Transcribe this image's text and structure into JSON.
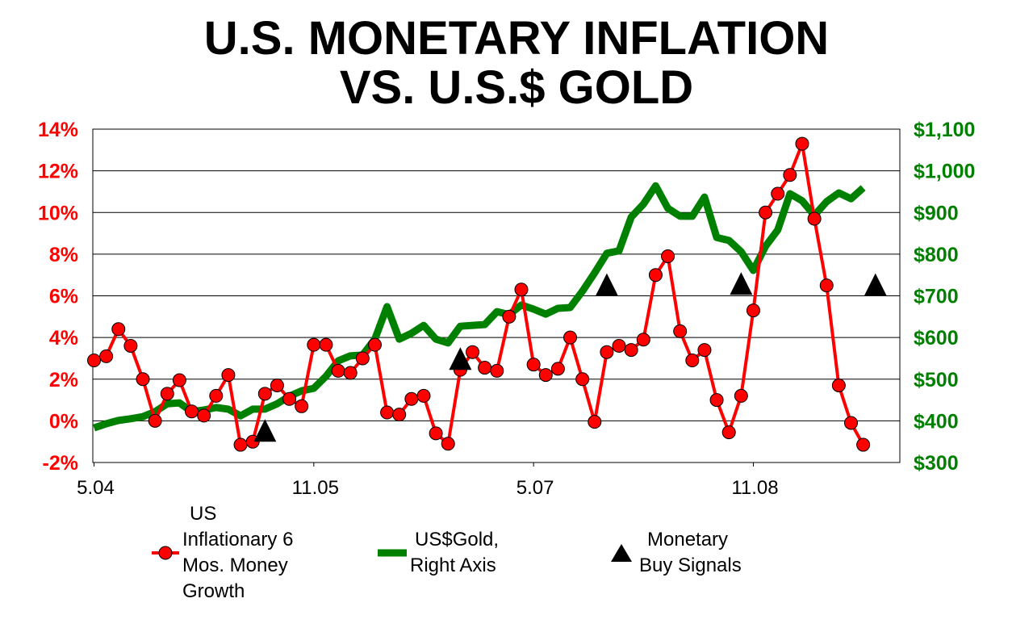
{
  "chart_data": {
    "type": "line",
    "title_line1": "U.S. MONETARY INFLATION",
    "title_line2": "VS. U.S.$ GOLD",
    "x_tick_labels": [
      {
        "index": 0,
        "label": "5.04"
      },
      {
        "index": 18,
        "label": "11.05"
      },
      {
        "index": 36,
        "label": "5.07"
      },
      {
        "index": 54,
        "label": "11.08"
      }
    ],
    "xlim": [
      -0.1,
      66
    ],
    "left_axis": {
      "ylim": [
        -2,
        14
      ],
      "ticks": [
        -2,
        0,
        2,
        4,
        6,
        8,
        10,
        12,
        14
      ],
      "tick_labels": [
        "-2%",
        "0%",
        "2%",
        "4%",
        "6%",
        "8%",
        "10%",
        "12%",
        "14%"
      ],
      "color": "#ff0000"
    },
    "right_axis": {
      "ylim": [
        300,
        1100
      ],
      "ticks": [
        300,
        400,
        500,
        600,
        700,
        800,
        900,
        1000,
        1100
      ],
      "tick_labels": [
        "$300",
        "$400",
        "$500",
        "$600",
        "$700",
        "$800",
        "$900",
        "$1,000",
        "$1,100"
      ],
      "color": "#008000"
    },
    "grid": true,
    "series": [
      {
        "name": "US Inflationary 6 Mos. Money Growth",
        "axis": "left",
        "color": "#ff0000",
        "values": [
          2.9,
          3.1,
          4.4,
          3.6,
          2.0,
          0.0,
          1.3,
          1.95,
          0.45,
          0.25,
          1.2,
          2.2,
          -1.15,
          -1.0,
          1.3,
          1.7,
          1.05,
          0.7,
          3.65,
          3.65,
          2.4,
          2.3,
          3.0,
          3.65,
          0.4,
          0.3,
          1.05,
          1.2,
          -0.6,
          -1.1,
          2.45,
          3.3,
          2.55,
          2.4,
          5.0,
          6.3,
          2.7,
          2.2,
          2.5,
          4.0,
          2.0,
          -0.05,
          3.3,
          3.6,
          3.4,
          3.9,
          7.0,
          7.9,
          4.3,
          2.9,
          3.4,
          1.0,
          -0.55,
          1.2,
          5.3,
          10.0,
          10.9,
          11.8,
          13.3,
          9.7,
          6.5,
          1.7,
          -0.1,
          -1.15
        ]
      },
      {
        "name": "US$Gold, Right Axis",
        "axis": "right",
        "color": "#008000",
        "values": [
          383,
          393,
          401,
          405,
          410,
          422,
          441,
          443,
          422,
          426,
          432,
          428,
          412,
          428,
          428,
          441,
          459,
          472,
          478,
          507,
          544,
          556,
          558,
          596,
          674,
          596,
          610,
          629,
          596,
          587,
          627,
          629,
          631,
          662,
          655,
          678,
          668,
          656,
          670,
          672,
          711,
          755,
          802,
          808,
          889,
          920,
          964,
          910,
          891,
          891,
          937,
          840,
          833,
          806,
          761,
          819,
          858,
          945,
          928,
          893,
          926,
          947,
          933,
          959
        ]
      },
      {
        "name": "Monetary Buy Signals",
        "axis": "left",
        "color": "#000000",
        "points": [
          {
            "index": 14,
            "value": -0.5
          },
          {
            "index": 30,
            "value": 2.95
          },
          {
            "index": 42,
            "value": 6.5
          },
          {
            "index": 53,
            "value": 6.55
          },
          {
            "index": 64,
            "value": 6.5
          }
        ]
      }
    ],
    "legend": {
      "placement": "bottom",
      "entries": [
        {
          "lines": [
            "US",
            "Inflationary 6",
            "Mos. Money",
            "Growth"
          ]
        },
        {
          "lines": [
            "US$Gold,",
            "Right Axis"
          ]
        },
        {
          "lines": [
            "Monetary",
            "Buy Signals"
          ]
        }
      ]
    }
  }
}
